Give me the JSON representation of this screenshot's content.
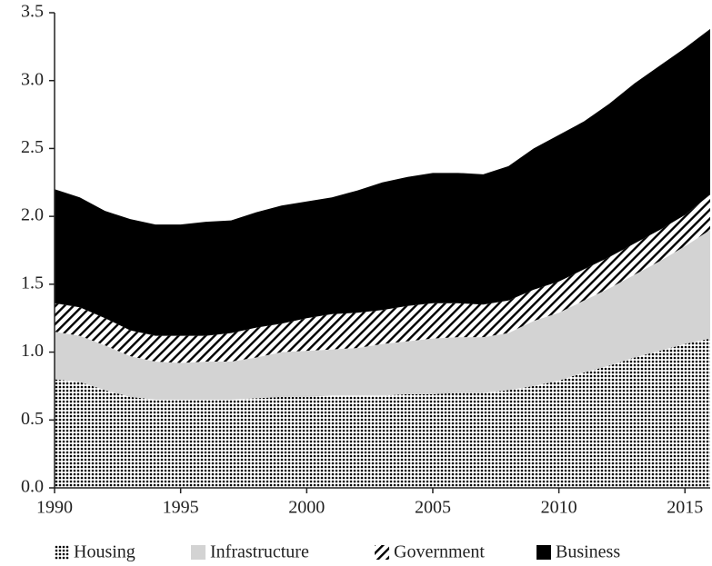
{
  "chart_data": {
    "type": "stacked_area",
    "x": [
      1990,
      1991,
      1992,
      1993,
      1994,
      1995,
      1996,
      1997,
      1998,
      1999,
      2000,
      2001,
      2002,
      2003,
      2004,
      2005,
      2006,
      2007,
      2008,
      2009,
      2010,
      2011,
      2012,
      2013,
      2014,
      2015,
      2016
    ],
    "series": [
      {
        "name": "Housing",
        "color": "#000000",
        "pattern": "dots",
        "values": [
          0.8,
          0.78,
          0.72,
          0.67,
          0.65,
          0.65,
          0.65,
          0.65,
          0.66,
          0.67,
          0.67,
          0.68,
          0.68,
          0.68,
          0.69,
          0.69,
          0.7,
          0.7,
          0.72,
          0.75,
          0.79,
          0.85,
          0.9,
          0.96,
          1.01,
          1.06,
          1.1
        ]
      },
      {
        "name": "Infrastructure",
        "color": "#d3d3d3",
        "pattern": "solid",
        "values": [
          0.35,
          0.34,
          0.33,
          0.3,
          0.28,
          0.27,
          0.28,
          0.28,
          0.3,
          0.33,
          0.34,
          0.34,
          0.35,
          0.38,
          0.39,
          0.41,
          0.41,
          0.41,
          0.42,
          0.48,
          0.5,
          0.53,
          0.57,
          0.61,
          0.66,
          0.72,
          0.8
        ]
      },
      {
        "name": "Government",
        "color": "#000000",
        "pattern": "hatch",
        "values": [
          0.21,
          0.21,
          0.2,
          0.19,
          0.19,
          0.2,
          0.19,
          0.21,
          0.22,
          0.21,
          0.24,
          0.26,
          0.26,
          0.25,
          0.26,
          0.26,
          0.25,
          0.24,
          0.24,
          0.23,
          0.23,
          0.23,
          0.23,
          0.23,
          0.23,
          0.23,
          0.26
        ]
      },
      {
        "name": "Business",
        "color": "#000000",
        "pattern": "solid",
        "values": [
          0.84,
          0.81,
          0.79,
          0.82,
          0.82,
          0.82,
          0.84,
          0.83,
          0.85,
          0.87,
          0.86,
          0.86,
          0.9,
          0.94,
          0.95,
          0.96,
          0.96,
          0.96,
          0.99,
          1.04,
          1.08,
          1.09,
          1.13,
          1.18,
          1.21,
          1.23,
          1.22
        ]
      }
    ],
    "xlim": [
      1990,
      2016
    ],
    "xticks": [
      1990,
      1995,
      2000,
      2005,
      2010,
      2015
    ],
    "ylim": [
      0,
      3.5
    ],
    "yticks": [
      {
        "value": 0,
        "label": "0.0"
      },
      0.5,
      {
        "value": 1,
        "label": "1.0"
      },
      1.5,
      {
        "value": 2,
        "label": "2.0"
      },
      2.5,
      {
        "value": 3,
        "label": "3.0"
      },
      3.5
    ],
    "grid": false,
    "legend": "bottom"
  }
}
